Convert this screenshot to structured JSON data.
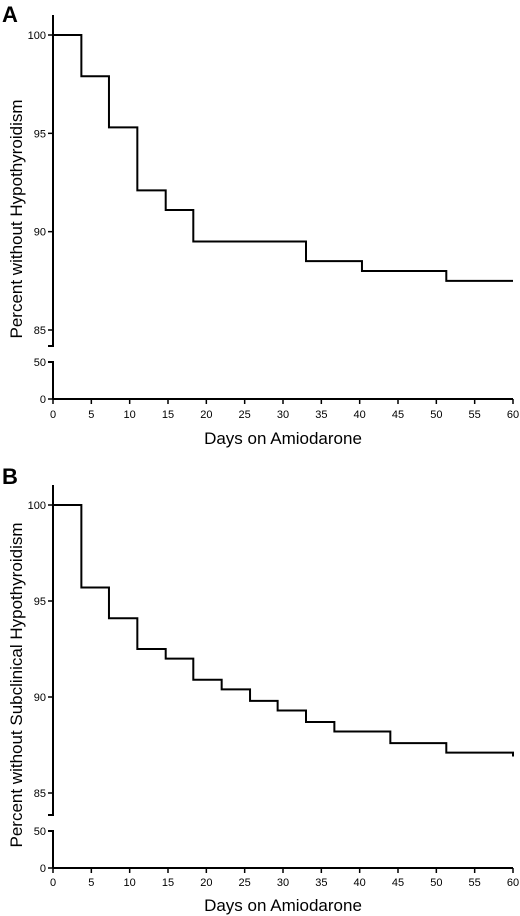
{
  "chart_data": [
    {
      "type": "line",
      "panel_label": "A",
      "xlabel": "Days on Amiodarone",
      "ylabel": "Percent without Hypothyroidism",
      "xlim": [
        0,
        60
      ],
      "x_ticks": [
        "0",
        "5",
        "10",
        "15",
        "20",
        "25",
        "30",
        "35",
        "40",
        "45",
        "50",
        "55",
        "60"
      ],
      "ylim_upper": [
        85,
        100
      ],
      "y_ticks_upper": [
        "100",
        "95",
        "90",
        "85"
      ],
      "ylim_lower": [
        0,
        50
      ],
      "y_ticks_lower": [
        "50",
        "0"
      ],
      "series": [
        {
          "step": true,
          "x": [
            0,
            3.7,
            7.3,
            11,
            14.7,
            18.3,
            33,
            40.3,
            51.3,
            60
          ],
          "y": [
            100,
            97.9,
            95.3,
            92.1,
            91.1,
            89.5,
            88.5,
            88,
            87.5,
            87.5
          ]
        }
      ]
    },
    {
      "type": "line",
      "panel_label": "B",
      "xlabel": "Days on Amiodarone",
      "ylabel": "Percent without Subclinical Hypothyroidism",
      "xlim": [
        0,
        60
      ],
      "x_ticks": [
        "0",
        "5",
        "10",
        "15",
        "20",
        "25",
        "30",
        "35",
        "40",
        "45",
        "50",
        "55",
        "60"
      ],
      "ylim_upper": [
        85,
        100
      ],
      "y_ticks_upper": [
        "100",
        "95",
        "90",
        "85"
      ],
      "ylim_lower": [
        0,
        50
      ],
      "y_ticks_lower": [
        "50",
        "0"
      ],
      "series": [
        {
          "step": true,
          "x": [
            0,
            3.7,
            7.3,
            11,
            14.7,
            18.3,
            22,
            25.7,
            29.3,
            33,
            36.7,
            44,
            51.3,
            60
          ],
          "y": [
            100,
            95.7,
            94.1,
            92.5,
            92,
            90.9,
            90.4,
            89.8,
            89.3,
            88.7,
            88.2,
            87.6,
            87.1,
            86.9
          ]
        }
      ]
    }
  ]
}
